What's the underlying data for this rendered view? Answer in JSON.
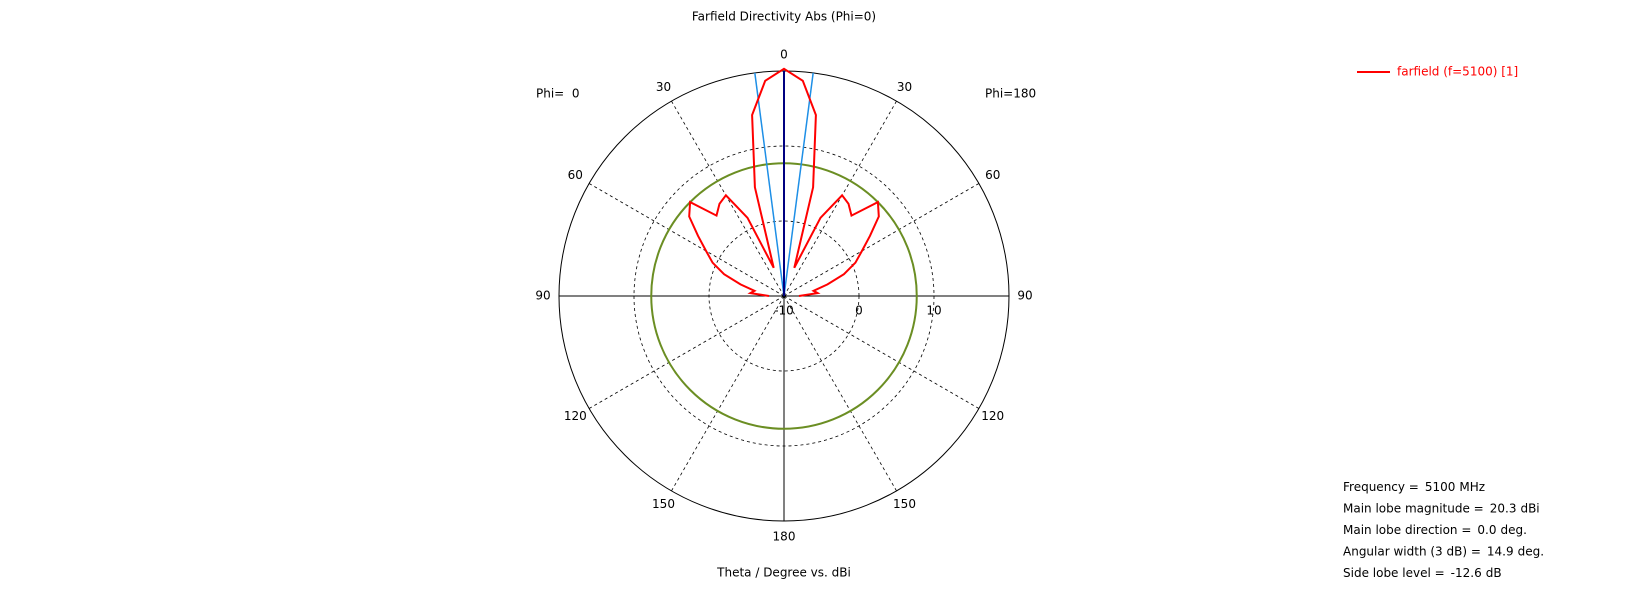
{
  "chart_data": {
    "type": "polar",
    "title": "Farfield Directivity Abs (Phi=0)",
    "xlabel": "Theta / Degree vs. dBi",
    "left_label": "Phi=  0",
    "right_label": "Phi=180",
    "rlim": [
      -10,
      20
    ],
    "rticks": [
      -10,
      0,
      10
    ],
    "theta_ticks": [
      0,
      30,
      60,
      90,
      120,
      150,
      180
    ],
    "x": [
      -90,
      -85,
      -80,
      -75,
      -70,
      -65,
      -60,
      -55,
      -50,
      -45,
      -40,
      -35,
      -30,
      -25,
      -20,
      -15,
      -10,
      -5,
      0,
      5,
      10,
      15,
      20,
      25,
      30,
      35,
      40,
      45,
      50,
      55,
      60,
      65,
      70,
      75,
      80,
      85,
      90
    ],
    "series": [
      {
        "name": "farfield (f=5100) [1]",
        "color": "#ff0000",
        "values": [
          -8,
          -5.5,
          -6,
          -4,
          -1.5,
          0.5,
          2,
          4,
          6.5,
          7.7,
          4,
          5,
          5.5,
          1.5,
          -6,
          5,
          14.5,
          18.8,
          20.3,
          18.8,
          14.5,
          5,
          -6,
          1.5,
          5.5,
          5,
          4,
          7.7,
          6.5,
          4,
          2,
          0.5,
          -1.5,
          -4,
          -6,
          -5.5,
          -8
        ]
      }
    ],
    "main_lobe_color": "#000080",
    "beamwidth_color": "#1e8fe6",
    "sidelobe_color": "#6b8e23",
    "info": [
      {
        "label": "Frequency =",
        "value": 5100,
        "unit": "MHz"
      },
      {
        "label": "Main lobe magnitude =",
        "value": 20.3,
        "unit": "dBi"
      },
      {
        "label": "Main lobe direction =",
        "value": 0.0,
        "unit": "deg."
      },
      {
        "label": "Angular width (3 dB) =",
        "value": 14.9,
        "unit": "deg."
      },
      {
        "label": "Side lobe level =",
        "value": -12.6,
        "unit": "dB"
      }
    ]
  }
}
